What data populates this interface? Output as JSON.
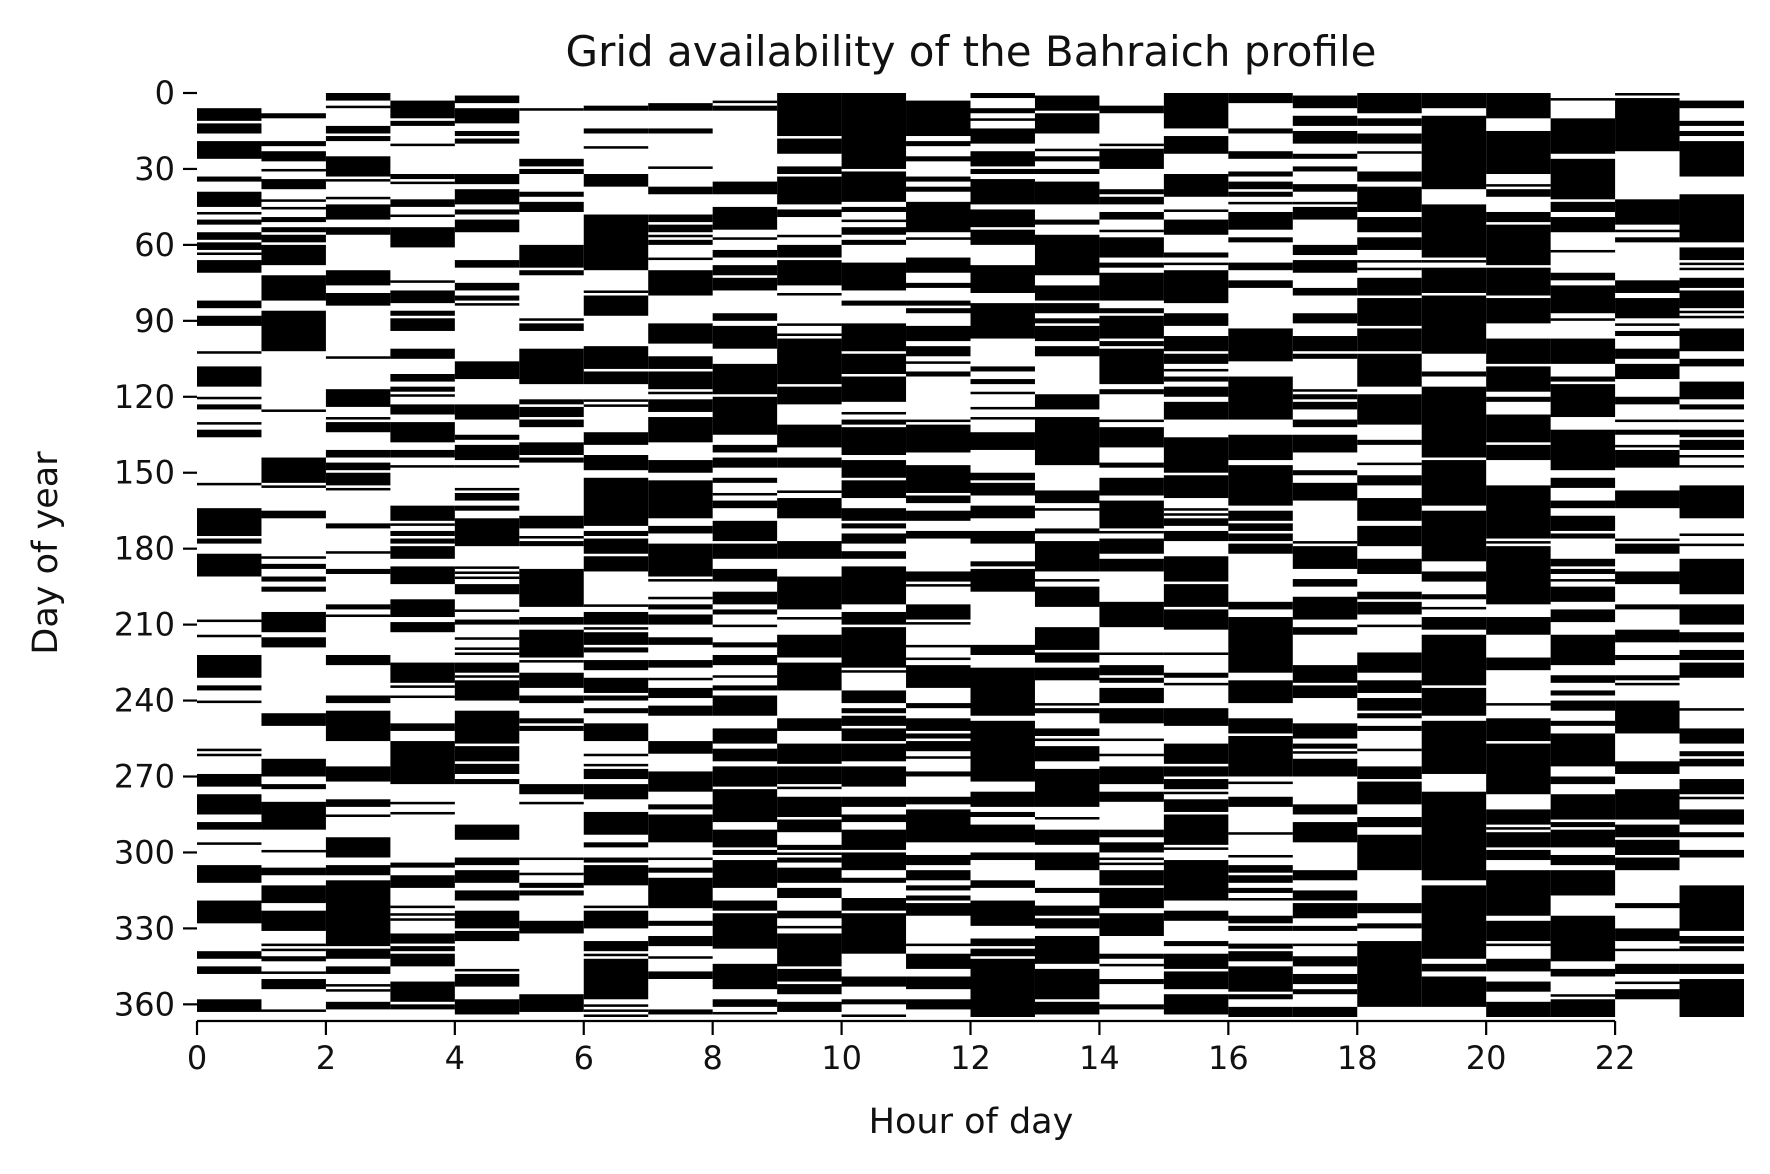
{
  "chart_data": {
    "type": "heatmap",
    "title": "Grid availability of the Bahraich profile",
    "xlabel": "Hour of day",
    "ylabel": "Day of year",
    "x_ticks": [
      "0",
      "2",
      "4",
      "6",
      "8",
      "10",
      "12",
      "14",
      "16",
      "18",
      "20",
      "22"
    ],
    "y_ticks": [
      "0",
      "30",
      "60",
      "90",
      "120",
      "150",
      "180",
      "210",
      "240",
      "270",
      "300",
      "330",
      "360"
    ],
    "x_range": [
      0,
      24
    ],
    "y_range": [
      0,
      365
    ],
    "hours": 24,
    "days": 365,
    "colors": {
      "available": "#ffffff",
      "outage": "#000000"
    },
    "hourly_outage_probability": [
      0.38,
      0.34,
      0.42,
      0.4,
      0.43,
      0.36,
      0.52,
      0.55,
      0.66,
      0.62,
      0.62,
      0.55,
      0.63,
      0.67,
      0.55,
      0.63,
      0.56,
      0.55,
      0.58,
      0.8,
      0.72,
      0.58,
      0.48,
      0.52
    ],
    "grid": false,
    "legend": "none",
    "x_axis_style": "spine-with-ticks",
    "y_axis_style": "ticks-only"
  }
}
